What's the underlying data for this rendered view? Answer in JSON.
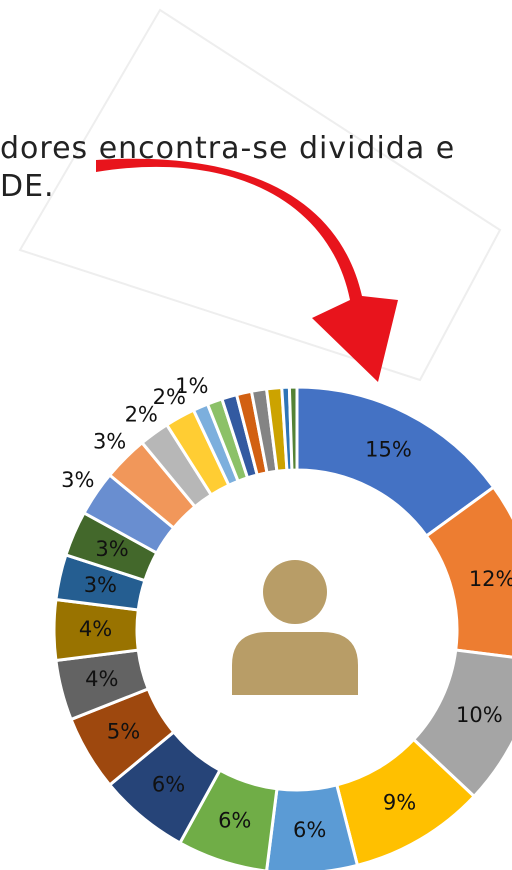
{
  "text_lines": [
    "dores  encontra-se  dividida  e",
    "DE."
  ],
  "chart_data": {
    "type": "donut",
    "values": [
      15,
      12,
      10,
      9,
      6,
      6,
      6,
      5,
      4,
      4,
      3,
      3,
      3,
      3,
      2,
      2,
      1,
      1,
      1,
      1,
      1,
      1,
      0.5,
      0.5
    ],
    "value_labels": [
      "15%",
      "12%",
      "10%",
      "9%",
      "6%",
      "6%",
      "6%",
      "5%",
      "4%",
      "4%",
      "3%",
      "3%",
      "3%",
      "3%",
      "2%",
      "2%",
      "1%",
      null,
      null,
      null,
      null,
      null,
      null,
      null
    ],
    "colors": [
      "#4472c4",
      "#ed7d31",
      "#a5a5a5",
      "#ffc000",
      "#5b9bd5",
      "#70ad47",
      "#264478",
      "#9e480e",
      "#636363",
      "#997300",
      "#255e91",
      "#43682b",
      "#698ed0",
      "#f1975a",
      "#b7b7b7",
      "#ffcd33",
      "#7cafdd",
      "#8cc168",
      "#335aa1",
      "#d26012",
      "#848484",
      "#cca300",
      "#2e75b6",
      "#548235"
    ]
  }
}
